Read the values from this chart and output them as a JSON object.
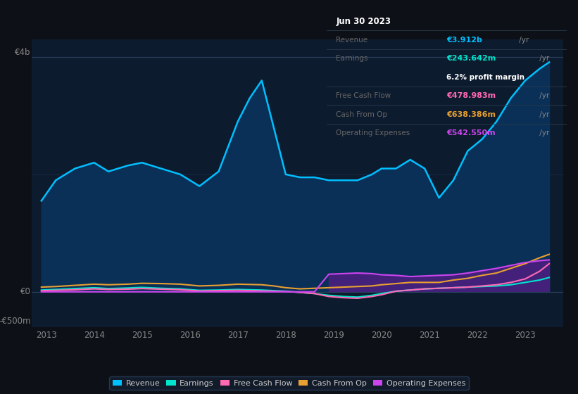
{
  "background_color": "#0d1117",
  "plot_bg_color": "#0d1b2e",
  "years": [
    2012.9,
    2013.2,
    2013.6,
    2014.0,
    2014.3,
    2014.7,
    2015.0,
    2015.4,
    2015.8,
    2016.2,
    2016.6,
    2017.0,
    2017.25,
    2017.5,
    2017.75,
    2018.0,
    2018.3,
    2018.6,
    2018.9,
    2019.2,
    2019.5,
    2019.8,
    2020.0,
    2020.3,
    2020.6,
    2020.9,
    2021.2,
    2021.5,
    2021.8,
    2022.1,
    2022.4,
    2022.7,
    2023.0,
    2023.3,
    2023.5
  ],
  "revenue": [
    1550,
    1900,
    2100,
    2200,
    2050,
    2150,
    2200,
    2100,
    2000,
    1800,
    2050,
    2900,
    3300,
    3600,
    2800,
    2000,
    1950,
    1950,
    1900,
    1900,
    1900,
    2000,
    2100,
    2100,
    2250,
    2100,
    1600,
    1900,
    2400,
    2600,
    2900,
    3300,
    3600,
    3800,
    3912
  ],
  "earnings": [
    30,
    40,
    55,
    70,
    55,
    65,
    75,
    60,
    50,
    25,
    30,
    40,
    35,
    30,
    20,
    10,
    -10,
    -30,
    -60,
    -80,
    -90,
    -60,
    -30,
    10,
    30,
    50,
    60,
    70,
    80,
    90,
    100,
    120,
    160,
    200,
    244
  ],
  "free_cash_flow": [
    20,
    25,
    35,
    50,
    40,
    45,
    55,
    45,
    35,
    15,
    20,
    25,
    20,
    15,
    10,
    5,
    -10,
    -30,
    -80,
    -100,
    -110,
    -80,
    -50,
    10,
    30,
    50,
    60,
    70,
    80,
    100,
    120,
    160,
    220,
    350,
    479
  ],
  "cash_from_op": [
    80,
    90,
    110,
    130,
    120,
    130,
    145,
    140,
    130,
    100,
    110,
    130,
    125,
    120,
    100,
    70,
    50,
    60,
    70,
    80,
    90,
    100,
    120,
    140,
    160,
    160,
    160,
    200,
    230,
    280,
    320,
    400,
    480,
    580,
    638
  ],
  "op_exp_positive": [
    0,
    0,
    0,
    0,
    0,
    0,
    0,
    0,
    0,
    0,
    0,
    0,
    0,
    0,
    0,
    0,
    0,
    0,
    300,
    310,
    320,
    310,
    290,
    280,
    260,
    270,
    280,
    290,
    320,
    360,
    400,
    450,
    500,
    530,
    543
  ],
  "op_exp_line": [
    0,
    0,
    0,
    0,
    0,
    0,
    0,
    0,
    0,
    0,
    0,
    0,
    0,
    0,
    0,
    0,
    0,
    0,
    300,
    310,
    320,
    310,
    290,
    280,
    260,
    270,
    280,
    290,
    320,
    360,
    400,
    450,
    500,
    530,
    543
  ],
  "revenue_color": "#00bfff",
  "revenue_fill": "#0a3058",
  "earnings_color": "#00e5cc",
  "fcf_color": "#ff69b4",
  "cash_op_color": "#e8a030",
  "op_exp_color": "#cc44ee",
  "op_exp_fill": "#4a2080",
  "ylabel_4b": "€4b",
  "ylabel_0": "€0",
  "ylabel_neg500m": "-€500m",
  "xlim": [
    2012.7,
    2023.8
  ],
  "ylim": [
    -600,
    4300
  ],
  "tick_years": [
    2013,
    2014,
    2015,
    2016,
    2017,
    2018,
    2019,
    2020,
    2021,
    2022,
    2023
  ],
  "info_box": {
    "title": "Jun 30 2023",
    "rows": [
      {
        "label": "Revenue",
        "value": "€3.912b",
        "suffix": " /yr",
        "val_color": "#00bfff",
        "sub": null
      },
      {
        "label": "Earnings",
        "value": "€243.642m",
        "suffix": " /yr",
        "val_color": "#00e5cc",
        "sub": "6.2% profit margin"
      },
      {
        "label": "Free Cash Flow",
        "value": "€478.983m",
        "suffix": " /yr",
        "val_color": "#ff69b4",
        "sub": null
      },
      {
        "label": "Cash From Op",
        "value": "€638.386m",
        "suffix": " /yr",
        "val_color": "#e8a030",
        "sub": null
      },
      {
        "label": "Operating Expenses",
        "value": "€542.550m",
        "suffix": " /yr",
        "val_color": "#cc44ee",
        "sub": null
      }
    ]
  },
  "legend_items": [
    "Revenue",
    "Earnings",
    "Free Cash Flow",
    "Cash From Op",
    "Operating Expenses"
  ],
  "legend_colors": [
    "#00bfff",
    "#00e5cc",
    "#ff69b4",
    "#e8a030",
    "#cc44ee"
  ]
}
